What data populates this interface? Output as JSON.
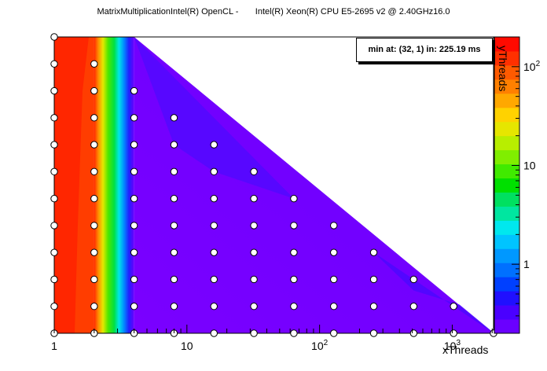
{
  "title": "MatrixMultiplicationIntel(R) OpenCL -       Intel(R) Xeon(R) CPU E5-2695 v2 @ 2.40GHz16.0",
  "min_box": "min at: (32, 1) in: 225.19 ms",
  "chart_data": {
    "type": "heatmap",
    "title": "MatrixMultiplicationIntel(R) OpenCL -       Intel(R) Xeon(R) CPU E5-2695 v2 @ 2.40GHz16.0",
    "xlabel": "xThreads",
    "ylabel": "yThreads",
    "x_scale": "log",
    "y_scale": "log",
    "xlim": [
      1,
      2048
    ],
    "ylim": [
      1,
      2048
    ],
    "x_ticks": [
      "1",
      "10",
      "10^2",
      "10^3"
    ],
    "colorbar": {
      "scale": "log",
      "range": [
        0.2,
        200
      ],
      "ticks": [
        "1",
        "10",
        "10^2"
      ],
      "colors": [
        "#6a00ff",
        "#4a00ff",
        "#2010ff",
        "#0040ff",
        "#0070ff",
        "#0098ff",
        "#00c4ff",
        "#00e8ee",
        "#00e6a0",
        "#00e060",
        "#00e000",
        "#40ea00",
        "#80ee00",
        "#b8ee00",
        "#e6e600",
        "#ffd200",
        "#ffa800",
        "#ff8000",
        "#ff5a00",
        "#ff3000",
        "#ff0a00"
      ]
    },
    "sample_points_x": [
      1,
      2,
      4,
      8,
      16,
      32,
      64,
      128,
      256,
      512,
      1024,
      2048
    ],
    "sample_points_y": [
      1,
      2,
      4,
      8,
      16,
      32,
      64,
      128,
      256,
      512,
      1024,
      2048
    ],
    "constraint": "x*y <= 2048",
    "minimum": {
      "x": 32,
      "y": 1,
      "time_ms": 225.19
    },
    "colors": {
      "high": "#ff2600",
      "transition": "#00e000",
      "low": "#7400ff",
      "low_edge": "#5a00ff"
    }
  }
}
